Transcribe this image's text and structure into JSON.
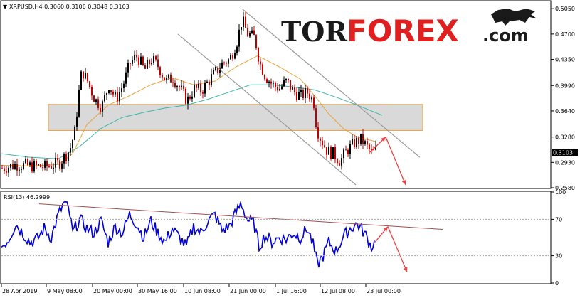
{
  "chart_header": {
    "label": "XRPUSD,H4  0.3060 0.3106 0.3048 0.3103",
    "symbol": "XRPUSD",
    "timeframe": "H4",
    "open": 0.306,
    "high": 0.3106,
    "low": 0.3048,
    "close": 0.3103
  },
  "logo": {
    "part1": "TOR",
    "part2": "FOREX",
    "part3": ".com"
  },
  "current_price_label": "0.3103",
  "rsi_header": {
    "label": "RSI(13) 46.2999",
    "period": 13,
    "value": 46.2999
  },
  "colors": {
    "bull_candle": "#000000",
    "bear_candle": "#c00000",
    "ma_fast": "#e8a33d",
    "ma_slow": "#3fb6a8",
    "rsi_line": "#0000e0",
    "trendline": "#a05050",
    "arrow": "#f04040",
    "zone_fill": "#d9d9d9",
    "zone_border": "#e8a33d",
    "channel": "#999999",
    "logo_dark": "#1a1a1a",
    "logo_red": "#e02020"
  },
  "chart_data": [
    {
      "type": "candlestick",
      "x_ticks": [
        "28 Apr 2019",
        "9 May 08:00",
        "20 May 00:00",
        "30 May 16:00",
        "10 Jun 08:00",
        "21 Jun 00:00",
        "1 Jul 16:00",
        "12 Jul 08:00",
        "23 Jul 00:00"
      ],
      "y_ticks": [
        "0.5050",
        "0.4700",
        "0.4350",
        "0.3990",
        "0.3640",
        "0.3280",
        "0.2930",
        "0.2580"
      ],
      "ylim": [
        0.258,
        0.515
      ],
      "close_path": [
        [
          0,
          0.285
        ],
        [
          20,
          0.29
        ],
        [
          40,
          0.288
        ],
        [
          60,
          0.287
        ],
        [
          80,
          0.292
        ],
        [
          95,
          0.31
        ],
        [
          102,
          0.335
        ],
        [
          108,
          0.39
        ],
        [
          112,
          0.42
        ],
        [
          120,
          0.405
        ],
        [
          130,
          0.38
        ],
        [
          140,
          0.37
        ],
        [
          150,
          0.4
        ],
        [
          160,
          0.38
        ],
        [
          170,
          0.4
        ],
        [
          180,
          0.43
        ],
        [
          190,
          0.44
        ],
        [
          200,
          0.42
        ],
        [
          210,
          0.435
        ],
        [
          220,
          0.425
        ],
        [
          230,
          0.405
        ],
        [
          240,
          0.41
        ],
        [
          250,
          0.395
        ],
        [
          260,
          0.378
        ],
        [
          270,
          0.395
        ],
        [
          280,
          0.392
        ],
        [
          290,
          0.405
        ],
        [
          300,
          0.418
        ],
        [
          310,
          0.43
        ],
        [
          320,
          0.435
        ],
        [
          330,
          0.46
        ],
        [
          337,
          0.49
        ],
        [
          345,
          0.47
        ],
        [
          355,
          0.465
        ],
        [
          362,
          0.43
        ],
        [
          370,
          0.412
        ],
        [
          380,
          0.4
        ],
        [
          390,
          0.395
        ],
        [
          400,
          0.405
        ],
        [
          410,
          0.39
        ],
        [
          420,
          0.385
        ],
        [
          430,
          0.39
        ],
        [
          438,
          0.375
        ],
        [
          442,
          0.34
        ],
        [
          448,
          0.325
        ],
        [
          456,
          0.31
        ],
        [
          465,
          0.305
        ],
        [
          475,
          0.295
        ],
        [
          485,
          0.31
        ],
        [
          495,
          0.32
        ],
        [
          505,
          0.325
        ],
        [
          512,
          0.315
        ],
        [
          520,
          0.305
        ],
        [
          525,
          0.31
        ]
      ],
      "ma_fast": [
        [
          0,
          0.289
        ],
        [
          40,
          0.288
        ],
        [
          80,
          0.29
        ],
        [
          100,
          0.305
        ],
        [
          120,
          0.345
        ],
        [
          150,
          0.372
        ],
        [
          180,
          0.385
        ],
        [
          210,
          0.4
        ],
        [
          240,
          0.41
        ],
        [
          270,
          0.4
        ],
        [
          300,
          0.405
        ],
        [
          330,
          0.425
        ],
        [
          360,
          0.44
        ],
        [
          390,
          0.425
        ],
        [
          420,
          0.408
        ],
        [
          440,
          0.385
        ],
        [
          460,
          0.36
        ],
        [
          480,
          0.34
        ],
        [
          500,
          0.328
        ],
        [
          525,
          0.322
        ]
      ],
      "ma_slow": [
        [
          0,
          0.305
        ],
        [
          40,
          0.3
        ],
        [
          80,
          0.298
        ],
        [
          110,
          0.315
        ],
        [
          140,
          0.34
        ],
        [
          170,
          0.355
        ],
        [
          200,
          0.362
        ],
        [
          230,
          0.368
        ],
        [
          260,
          0.372
        ],
        [
          290,
          0.38
        ],
        [
          320,
          0.39
        ],
        [
          350,
          0.4
        ],
        [
          380,
          0.4
        ],
        [
          410,
          0.397
        ],
        [
          440,
          0.393
        ],
        [
          470,
          0.383
        ],
        [
          500,
          0.372
        ],
        [
          535,
          0.358
        ]
      ],
      "zone": [
        0.337,
        0.373
      ],
      "channel_lines": [
        [
          [
            250,
            0.47
          ],
          [
            500,
            0.262
          ]
        ],
        [
          [
            340,
            0.505
          ],
          [
            590,
            0.3
          ]
        ]
      ],
      "arrows": [
        [
          [
            520,
            0.307
          ],
          [
            542,
            0.328
          ]
        ],
        [
          [
            542,
            0.328
          ],
          [
            570,
            0.262
          ]
        ]
      ]
    },
    {
      "type": "line",
      "name": "RSI(13)",
      "y_ticks": [
        "100",
        "70",
        "30",
        "0"
      ],
      "ylim": [
        0,
        100
      ],
      "rsi_path": [
        [
          0,
          40
        ],
        [
          10,
          48
        ],
        [
          20,
          65
        ],
        [
          30,
          55
        ],
        [
          40,
          45
        ],
        [
          50,
          48
        ],
        [
          60,
          60
        ],
        [
          70,
          50
        ],
        [
          80,
          75
        ],
        [
          88,
          88
        ],
        [
          95,
          80
        ],
        [
          100,
          55
        ],
        [
          110,
          70
        ],
        [
          120,
          60
        ],
        [
          130,
          55
        ],
        [
          140,
          68
        ],
        [
          150,
          45
        ],
        [
          160,
          62
        ],
        [
          170,
          55
        ],
        [
          180,
          75
        ],
        [
          190,
          65
        ],
        [
          200,
          50
        ],
        [
          210,
          68
        ],
        [
          220,
          55
        ],
        [
          230,
          45
        ],
        [
          240,
          60
        ],
        [
          250,
          50
        ],
        [
          260,
          40
        ],
        [
          270,
          62
        ],
        [
          280,
          55
        ],
        [
          290,
          68
        ],
        [
          300,
          75
        ],
        [
          310,
          58
        ],
        [
          320,
          62
        ],
        [
          330,
          78
        ],
        [
          337,
          88
        ],
        [
          345,
          70
        ],
        [
          355,
          65
        ],
        [
          362,
          40
        ],
        [
          370,
          52
        ],
        [
          380,
          45
        ],
        [
          390,
          50
        ],
        [
          400,
          48
        ],
        [
          410,
          55
        ],
        [
          420,
          50
        ],
        [
          430,
          60
        ],
        [
          438,
          42
        ],
        [
          444,
          20
        ],
        [
          452,
          30
        ],
        [
          460,
          45
        ],
        [
          470,
          35
        ],
        [
          480,
          50
        ],
        [
          490,
          60
        ],
        [
          500,
          65
        ],
        [
          510,
          55
        ],
        [
          520,
          40
        ],
        [
          525,
          45
        ]
      ],
      "trendline": [
        [
          55,
          87
        ],
        [
          622,
          59
        ]
      ],
      "arrows": [
        [
          [
            527,
            45
          ],
          [
            545,
            62
          ]
        ],
        [
          [
            545,
            62
          ],
          [
            572,
            12
          ]
        ]
      ]
    }
  ]
}
